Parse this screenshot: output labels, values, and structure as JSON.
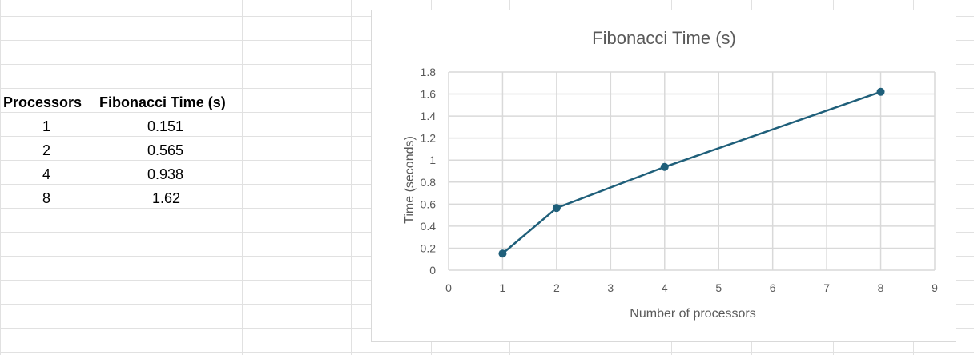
{
  "table": {
    "headers": [
      "Processors",
      "Fibonacci Time (s)"
    ],
    "rows": [
      [
        "1",
        "0.151"
      ],
      [
        "2",
        "0.565"
      ],
      [
        "4",
        "0.938"
      ],
      [
        "8",
        "1.62"
      ]
    ]
  },
  "chart_data": {
    "type": "scatter",
    "title": "Fibonacci Time (s)",
    "xlabel": "Number of processors",
    "ylabel": "Time (seconds)",
    "xlim": [
      0,
      9
    ],
    "ylim": [
      0,
      1.8
    ],
    "xticks": [
      "0",
      "1",
      "2",
      "3",
      "4",
      "5",
      "6",
      "7",
      "8",
      "9"
    ],
    "yticks": [
      "0",
      "0.2",
      "0.4",
      "0.6",
      "0.8",
      "1",
      "1.2",
      "1.4",
      "1.6",
      "1.8"
    ],
    "grid": true,
    "series": [
      {
        "x": [
          1,
          2,
          4,
          8
        ],
        "y": [
          0.151,
          0.565,
          0.938,
          1.62
        ],
        "color": "#1f5f7a",
        "style": "lines-and-markers"
      }
    ]
  }
}
